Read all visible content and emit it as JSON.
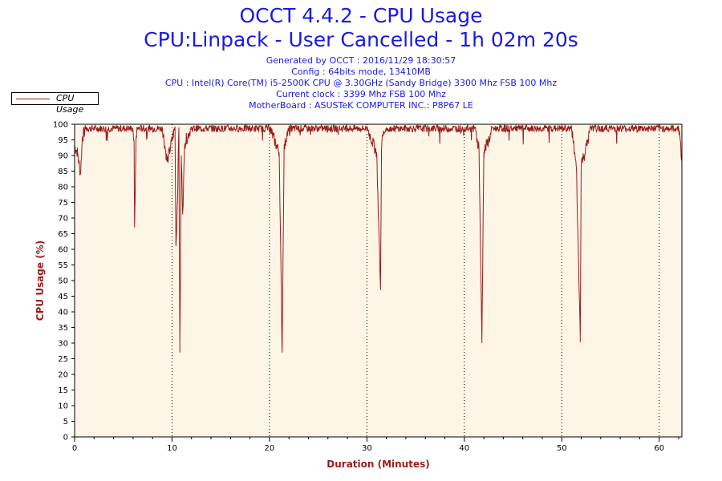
{
  "title": "OCCT 4.4.2 - CPU Usage",
  "subtitle": "CPU:Linpack - User Cancelled - 1h 02m 20s",
  "info": [
    "Generated by OCCT : 2016/11/29 18:30:57",
    "Config : 64bits mode, 13410MB",
    "CPU : Intel(R) Core(TM) i5-2500K CPU @ 3.30GHz (Sandy Bridge) 3300 Mhz FSB 100 Mhz",
    "Current clock : 3399 Mhz FSB 100 Mhz",
    "MotherBoard : ASUSTeK COMPUTER INC.: P8P67 LE"
  ],
  "colors": {
    "line": "#9a1d1d",
    "plot_bg": "#fdf5e6",
    "title": "#1a1ae6"
  },
  "chart_data": {
    "type": "line",
    "title": "OCCT 4.4.2 - CPU Usage",
    "xlabel": "Duration (Minutes)",
    "ylabel": "CPU Usage (%)",
    "xlim": [
      0,
      62.33
    ],
    "ylim": [
      0,
      100
    ],
    "x_ticks": [
      0,
      10,
      20,
      30,
      40,
      50,
      60
    ],
    "y_ticks": [
      0,
      5,
      10,
      15,
      20,
      25,
      30,
      35,
      40,
      45,
      50,
      55,
      60,
      65,
      70,
      75,
      80,
      85,
      90,
      95,
      100
    ],
    "legend": {
      "position": "top-left",
      "entries": [
        "CPU Usage"
      ]
    },
    "grid": "vertical dotted at x ticks",
    "series": [
      {
        "name": "CPU Usage",
        "x": [
          0,
          0.3,
          0.6,
          0.8,
          1.2,
          3.0,
          5.0,
          6.0,
          6.1,
          6.15,
          6.2,
          6.3,
          6.4,
          7.0,
          9.0,
          9.5,
          10.3,
          10.4,
          10.55,
          10.7,
          10.8,
          10.95,
          11.1,
          11.3,
          12.0,
          20.0,
          21.0,
          21.3,
          21.5,
          21.8,
          22.5,
          30.0,
          31.0,
          31.4,
          31.5,
          31.6,
          32.0,
          33.0,
          41.0,
          41.5,
          41.8,
          42.0,
          43.0,
          51.0,
          51.5,
          51.9,
          52.0,
          52.3,
          53.0,
          62.0,
          62.3
        ],
        "y": [
          93,
          91,
          84,
          96,
          99,
          99,
          99,
          98,
          95,
          67,
          74,
          95,
          99,
          99,
          99,
          88,
          99,
          61,
          75,
          99,
          27,
          90,
          72,
          94,
          99,
          99,
          91,
          27,
          92,
          97,
          99,
          99,
          91,
          47,
          92,
          96,
          99,
          99,
          99,
          93,
          30,
          91,
          99,
          99,
          86,
          32,
          88,
          90,
          99,
          99,
          90
        ]
      }
    ]
  }
}
